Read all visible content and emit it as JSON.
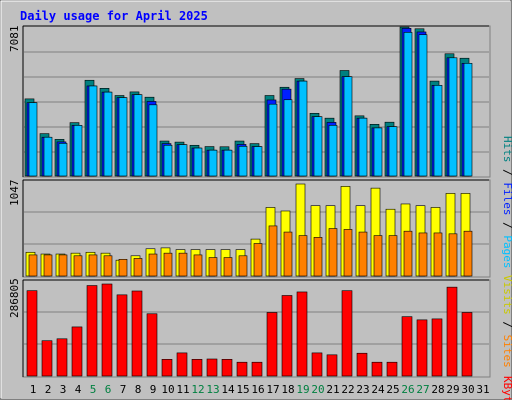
{
  "title": "Daily usage for April 2025",
  "colors": {
    "background": "#c0c0c0",
    "hits": "#00c0ff",
    "hits_shadow": "#008080",
    "files": "#0020ff",
    "pages": "#00c0ff",
    "visits": "#ffff00",
    "sites": "#ff8000",
    "kbytes": "#ff0000",
    "title": "#0000ff",
    "weekend_label": "#008040"
  },
  "days": [
    "1",
    "2",
    "3",
    "4",
    "5",
    "6",
    "7",
    "8",
    "9",
    "10",
    "11",
    "12",
    "13",
    "14",
    "15",
    "16",
    "17",
    "18",
    "19",
    "20",
    "21",
    "22",
    "23",
    "24",
    "25",
    "26",
    "27",
    "28",
    "29",
    "30",
    "31"
  ],
  "weekend_days": [
    5,
    6,
    12,
    13,
    19,
    20,
    26,
    27
  ],
  "panels": {
    "hits": {
      "max_label": "7081",
      "legend": [
        "Pages",
        "Files",
        "Hits"
      ]
    },
    "visits": {
      "max_label": "1047",
      "legend": [
        "Sites",
        "Visits"
      ]
    },
    "kbytes": {
      "max_label": "286805",
      "legend": [
        "KBytes"
      ]
    }
  },
  "chart_data": [
    {
      "type": "bar",
      "categories": [
        "1",
        "2",
        "3",
        "4",
        "5",
        "6",
        "7",
        "8",
        "9",
        "10",
        "11",
        "12",
        "13",
        "14",
        "15",
        "16",
        "17",
        "18",
        "19",
        "20",
        "21",
        "22",
        "23",
        "24",
        "25",
        "26",
        "27",
        "28",
        "29",
        "30",
        "31"
      ],
      "ylim": [
        0,
        7081
      ],
      "series": [
        {
          "name": "Hits",
          "values": [
            3640,
            2000,
            1730,
            2520,
            4520,
            4140,
            3800,
            3970,
            3720,
            1650,
            1600,
            1450,
            1390,
            1380,
            1650,
            1530,
            3800,
            4190,
            4600,
            2960,
            2730,
            4980,
            2840,
            2440,
            2540,
            7030,
            6950,
            4480,
            5770,
            5560,
            0
          ]
        },
        {
          "name": "Files",
          "values": [
            3460,
            1830,
            1610,
            2390,
            4250,
            3960,
            3700,
            3840,
            3520,
            1530,
            1480,
            1320,
            1220,
            1220,
            1490,
            1390,
            3590,
            4100,
            4480,
            2800,
            2530,
            4690,
            2730,
            2270,
            2330,
            6970,
            6800,
            4280,
            5580,
            5320,
            0
          ]
        },
        {
          "name": "Pages",
          "values": [
            3460,
            1830,
            1540,
            2390,
            4250,
            3960,
            3700,
            3840,
            3360,
            1450,
            1480,
            1320,
            1220,
            1220,
            1400,
            1390,
            3390,
            3600,
            4480,
            2800,
            2390,
            4690,
            2730,
            2270,
            2330,
            6780,
            6670,
            4280,
            5580,
            5320,
            0
          ]
        }
      ]
    },
    {
      "type": "bar",
      "categories": [
        "1",
        "2",
        "3",
        "4",
        "5",
        "6",
        "7",
        "8",
        "9",
        "10",
        "11",
        "12",
        "13",
        "14",
        "15",
        "16",
        "17",
        "18",
        "19",
        "20",
        "21",
        "22",
        "23",
        "24",
        "25",
        "26",
        "27",
        "28",
        "29",
        "30",
        "31"
      ],
      "ylim": [
        0,
        1047
      ],
      "series": [
        {
          "name": "Visits",
          "values": [
            270,
            250,
            250,
            260,
            270,
            260,
            180,
            230,
            310,
            320,
            300,
            300,
            300,
            300,
            300,
            420,
            780,
            740,
            1047,
            800,
            800,
            1020,
            800,
            1000,
            760,
            820,
            800,
            780,
            940,
            940,
            0
          ]
        },
        {
          "name": "Sites",
          "values": [
            240,
            240,
            240,
            230,
            240,
            230,
            190,
            200,
            250,
            260,
            260,
            240,
            210,
            210,
            230,
            370,
            570,
            500,
            460,
            440,
            540,
            530,
            500,
            460,
            460,
            510,
            490,
            490,
            480,
            510,
            0
          ]
        }
      ]
    },
    {
      "type": "bar",
      "categories": [
        "1",
        "2",
        "3",
        "4",
        "5",
        "6",
        "7",
        "8",
        "9",
        "10",
        "11",
        "12",
        "13",
        "14",
        "15",
        "16",
        "17",
        "18",
        "19",
        "20",
        "21",
        "22",
        "23",
        "24",
        "25",
        "26",
        "27",
        "28",
        "29",
        "30",
        "31"
      ],
      "ylim": [
        0,
        286805
      ],
      "series": [
        {
          "name": "KBytes",
          "values": [
            266000,
            110000,
            116000,
            153000,
            282000,
            286805,
            253000,
            265000,
            194000,
            52000,
            72000,
            52000,
            53000,
            52000,
            43000,
            43000,
            198000,
            251000,
            262000,
            72000,
            66000,
            266000,
            71000,
            43000,
            43000,
            185000,
            175000,
            178000,
            277000,
            198000,
            0
          ]
        }
      ]
    }
  ]
}
